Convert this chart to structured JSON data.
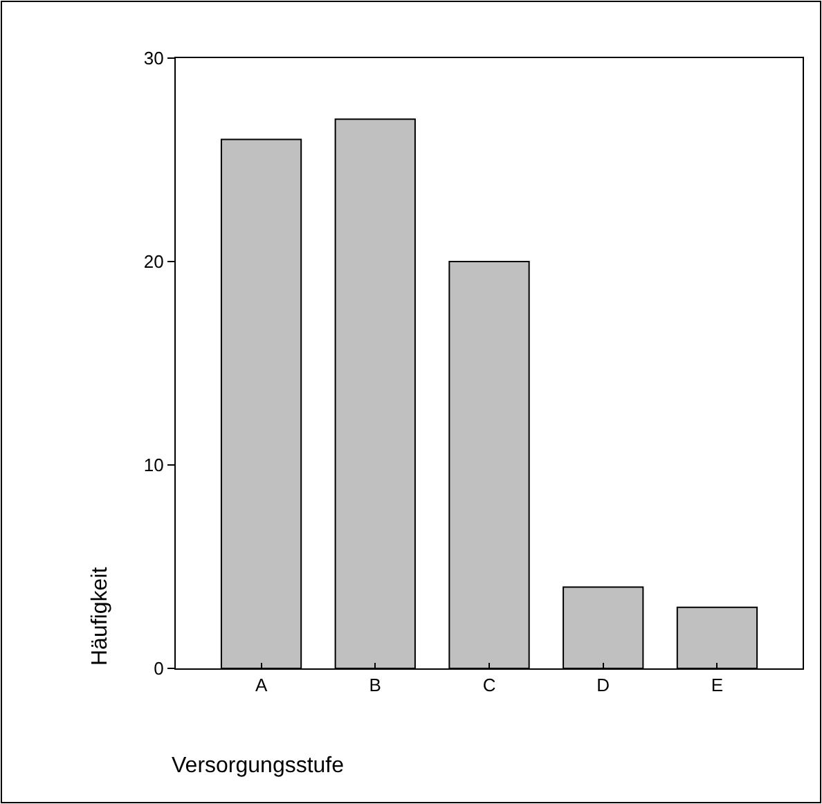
{
  "chart_data": {
    "type": "bar",
    "xlabel": "Versorgungsstufe",
    "ylabel": "Häufigkeit",
    "categories": [
      "A",
      "B",
      "C",
      "D",
      "E"
    ],
    "values": [
      26,
      27,
      20,
      4,
      3
    ],
    "color": "#c0c0c0",
    "ylim": [
      0,
      30
    ],
    "yticks": [
      0,
      10,
      20,
      30
    ],
    "legend": false
  }
}
